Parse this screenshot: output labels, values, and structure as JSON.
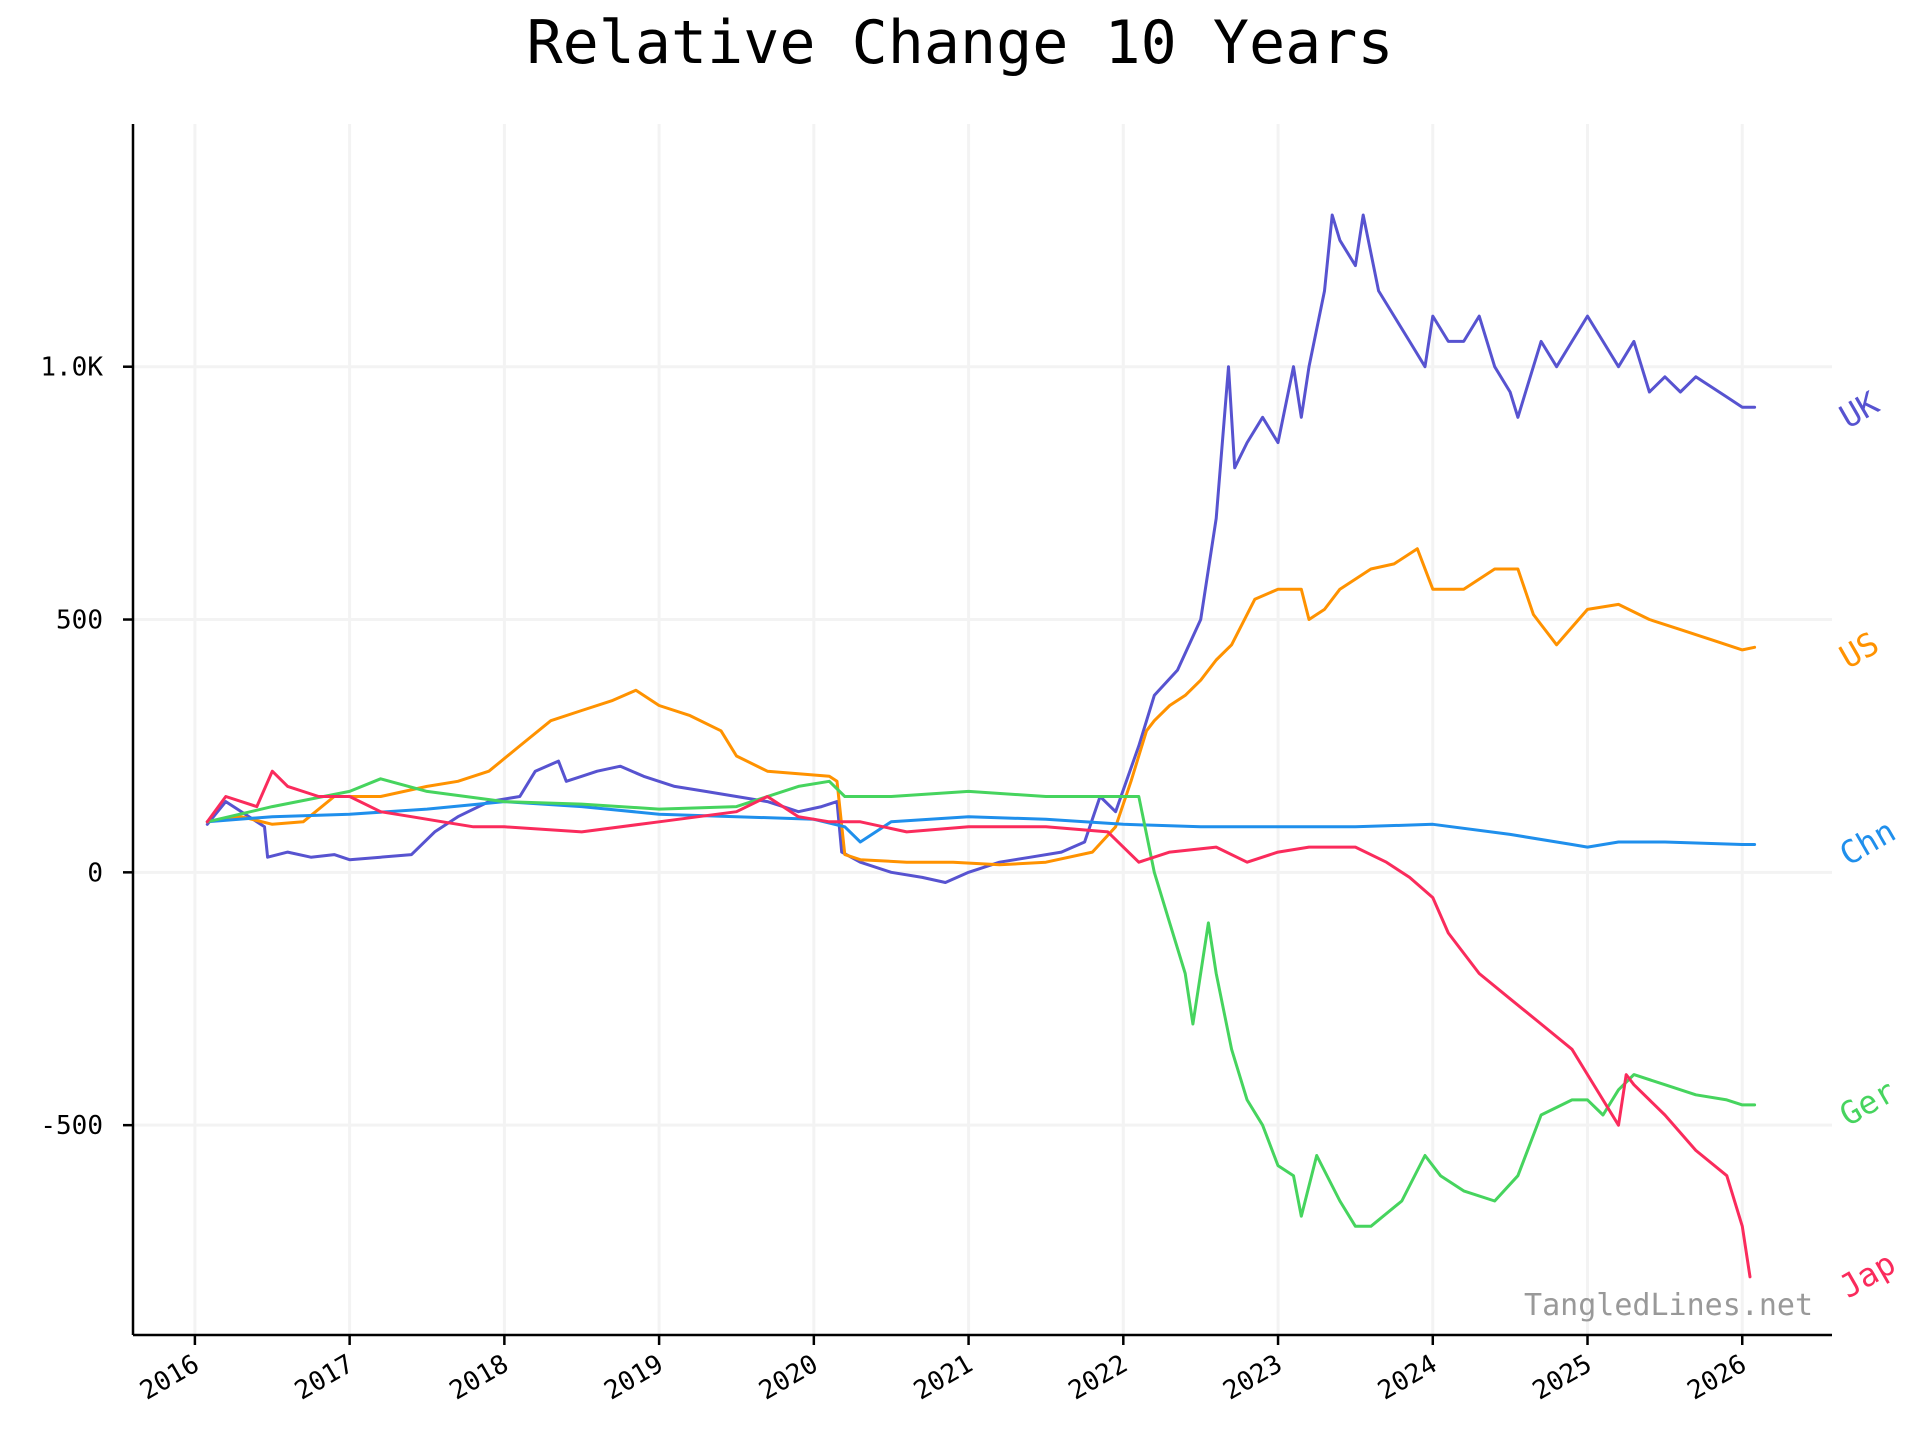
{
  "chart_data": {
    "type": "line",
    "title": "Relative Change 10 Years",
    "xlabel": "",
    "ylabel": "",
    "x_ticks": [
      "2016",
      "2017",
      "2018",
      "2019",
      "2020",
      "2021",
      "2022",
      "2023",
      "2024",
      "2025",
      "2026"
    ],
    "y_ticks": [
      {
        "value": -500,
        "label": "-500"
      },
      {
        "value": 0,
        "label": "0"
      },
      {
        "value": 500,
        "label": "500"
      },
      {
        "value": 1000,
        "label": "1.0K"
      }
    ],
    "xlim": [
      2015.6,
      2026.58
    ],
    "ylim": [
      -915,
      1480
    ],
    "grid": true,
    "legend": "inline-right",
    "watermark": "TangledLines.net",
    "series": [
      {
        "name": "UK",
        "color": "#5753d0",
        "x": [
          2016.08,
          2016.2,
          2016.35,
          2016.45,
          2016.47,
          2016.6,
          2016.75,
          2016.9,
          2017.0,
          2017.2,
          2017.4,
          2017.55,
          2017.7,
          2017.9,
          2018.1,
          2018.2,
          2018.35,
          2018.4,
          2018.5,
          2018.6,
          2018.75,
          2018.9,
          2019.1,
          2019.3,
          2019.5,
          2019.7,
          2019.8,
          2019.9,
          2020.05,
          2020.15,
          2020.18,
          2020.3,
          2020.5,
          2020.7,
          2020.85,
          2021.0,
          2021.2,
          2021.4,
          2021.6,
          2021.75,
          2021.85,
          2021.95,
          2022.1,
          2022.2,
          2022.35,
          2022.5,
          2022.6,
          2022.68,
          2022.72,
          2022.8,
          2022.9,
          2023.0,
          2023.1,
          2023.15,
          2023.2,
          2023.3,
          2023.35,
          2023.4,
          2023.5,
          2023.55,
          2023.65,
          2023.75,
          2023.85,
          2023.95,
          2024.0,
          2024.1,
          2024.2,
          2024.3,
          2024.4,
          2024.5,
          2024.55,
          2024.6,
          2024.7,
          2024.8,
          2024.9,
          2025.0,
          2025.1,
          2025.2,
          2025.3,
          2025.4,
          2025.5,
          2025.6,
          2025.7,
          2025.8,
          2025.9,
          2026.0,
          2026.08
        ],
        "y": [
          95,
          140,
          110,
          90,
          30,
          40,
          30,
          35,
          25,
          30,
          35,
          80,
          110,
          140,
          150,
          200,
          220,
          180,
          190,
          200,
          210,
          190,
          170,
          160,
          150,
          140,
          130,
          120,
          130,
          140,
          40,
          20,
          0,
          -10,
          -20,
          0,
          20,
          30,
          40,
          60,
          150,
          120,
          250,
          350,
          400,
          500,
          700,
          1000,
          800,
          850,
          900,
          850,
          1000,
          900,
          1000,
          1150,
          1300,
          1250,
          1200,
          1300,
          1150,
          1100,
          1050,
          1000,
          1100,
          1050,
          1050,
          1100,
          1000,
          950,
          900,
          950,
          1050,
          1000,
          1050,
          1100,
          1050,
          1000,
          1050,
          950,
          980,
          950,
          980,
          960,
          940,
          920,
          920
        ]
      },
      {
        "name": "US",
        "color": "#ff9200",
        "x": [
          2016.08,
          2016.3,
          2016.5,
          2016.7,
          2016.9,
          2017.2,
          2017.5,
          2017.7,
          2017.9,
          2018.1,
          2018.3,
          2018.5,
          2018.7,
          2018.85,
          2019.0,
          2019.2,
          2019.4,
          2019.5,
          2019.7,
          2019.9,
          2020.1,
          2020.15,
          2020.2,
          2020.3,
          2020.6,
          2020.9,
          2021.2,
          2021.5,
          2021.8,
          2021.95,
          2022.05,
          2022.15,
          2022.2,
          2022.3,
          2022.4,
          2022.5,
          2022.6,
          2022.7,
          2022.85,
          2023.0,
          2023.15,
          2023.2,
          2023.3,
          2023.4,
          2023.6,
          2023.75,
          2023.9,
          2024.0,
          2024.2,
          2024.4,
          2024.55,
          2024.65,
          2024.7,
          2024.8,
          2025.0,
          2025.2,
          2025.4,
          2025.6,
          2025.8,
          2026.0,
          2026.08
        ],
        "y": [
          100,
          110,
          95,
          100,
          150,
          150,
          170,
          180,
          200,
          250,
          300,
          320,
          340,
          360,
          330,
          310,
          280,
          230,
          200,
          195,
          190,
          180,
          35,
          25,
          20,
          20,
          15,
          20,
          40,
          90,
          180,
          280,
          300,
          330,
          350,
          380,
          420,
          450,
          540,
          560,
          560,
          500,
          520,
          560,
          600,
          610,
          640,
          560,
          560,
          600,
          600,
          510,
          490,
          450,
          520,
          530,
          500,
          480,
          460,
          440,
          445
        ]
      },
      {
        "name": "Chn",
        "color": "#1f8fec",
        "x": [
          2016.08,
          2016.5,
          2017.0,
          2017.5,
          2018.0,
          2018.5,
          2019.0,
          2019.5,
          2020.0,
          2020.2,
          2020.3,
          2020.5,
          2021.0,
          2021.5,
          2022.0,
          2022.5,
          2023.0,
          2023.5,
          2024.0,
          2024.5,
          2024.9,
          2025.0,
          2025.2,
          2025.5,
          2026.0,
          2026.08
        ],
        "y": [
          100,
          110,
          115,
          125,
          140,
          130,
          115,
          110,
          105,
          90,
          60,
          100,
          110,
          105,
          95,
          90,
          90,
          90,
          95,
          75,
          55,
          50,
          60,
          60,
          55,
          55
        ]
      },
      {
        "name": "Ger",
        "color": "#46d45e",
        "x": [
          2016.08,
          2016.5,
          2017.0,
          2017.2,
          2017.5,
          2018.0,
          2018.5,
          2019.0,
          2019.5,
          2019.9,
          2020.1,
          2020.2,
          2020.5,
          2021.0,
          2021.5,
          2021.9,
          2022.1,
          2022.2,
          2022.3,
          2022.4,
          2022.45,
          2022.55,
          2022.6,
          2022.7,
          2022.8,
          2022.9,
          2023.0,
          2023.1,
          2023.15,
          2023.25,
          2023.4,
          2023.5,
          2023.6,
          2023.8,
          2023.95,
          2024.05,
          2024.2,
          2024.4,
          2024.55,
          2024.7,
          2024.9,
          2025.0,
          2025.1,
          2025.2,
          2025.3,
          2025.5,
          2025.7,
          2025.9,
          2026.0,
          2026.08
        ],
        "y": [
          100,
          130,
          160,
          185,
          160,
          140,
          135,
          125,
          130,
          170,
          180,
          150,
          150,
          160,
          150,
          150,
          150,
          0,
          -100,
          -200,
          -300,
          -100,
          -200,
          -350,
          -450,
          -500,
          -580,
          -600,
          -680,
          -560,
          -650,
          -700,
          -700,
          -650,
          -560,
          -600,
          -630,
          -650,
          -600,
          -480,
          -450,
          -450,
          -480,
          -430,
          -400,
          -420,
          -440,
          -450,
          -460,
          -460
        ]
      },
      {
        "name": "Jap",
        "color": "#fa2b5c",
        "x": [
          2016.08,
          2016.2,
          2016.4,
          2016.5,
          2016.6,
          2016.8,
          2017.0,
          2017.2,
          2017.4,
          2017.6,
          2017.8,
          2018.0,
          2018.5,
          2019.0,
          2019.5,
          2019.7,
          2019.9,
          2020.1,
          2020.3,
          2020.6,
          2021.0,
          2021.5,
          2021.9,
          2022.1,
          2022.3,
          2022.6,
          2022.8,
          2023.0,
          2023.2,
          2023.5,
          2023.7,
          2023.85,
          2024.0,
          2024.1,
          2024.3,
          2024.5,
          2024.7,
          2024.9,
          2025.0,
          2025.1,
          2025.2,
          2025.25,
          2025.3,
          2025.5,
          2025.7,
          2025.9,
          2026.0,
          2026.05
        ],
        "y": [
          100,
          150,
          130,
          200,
          170,
          150,
          150,
          120,
          110,
          100,
          90,
          90,
          80,
          100,
          120,
          150,
          110,
          100,
          100,
          80,
          90,
          90,
          80,
          20,
          40,
          50,
          20,
          40,
          50,
          50,
          20,
          -10,
          -50,
          -120,
          -200,
          -250,
          -300,
          -350,
          -400,
          -450,
          -500,
          -400,
          -420,
          -480,
          -550,
          -600,
          -700,
          -800
        ]
      }
    ]
  }
}
